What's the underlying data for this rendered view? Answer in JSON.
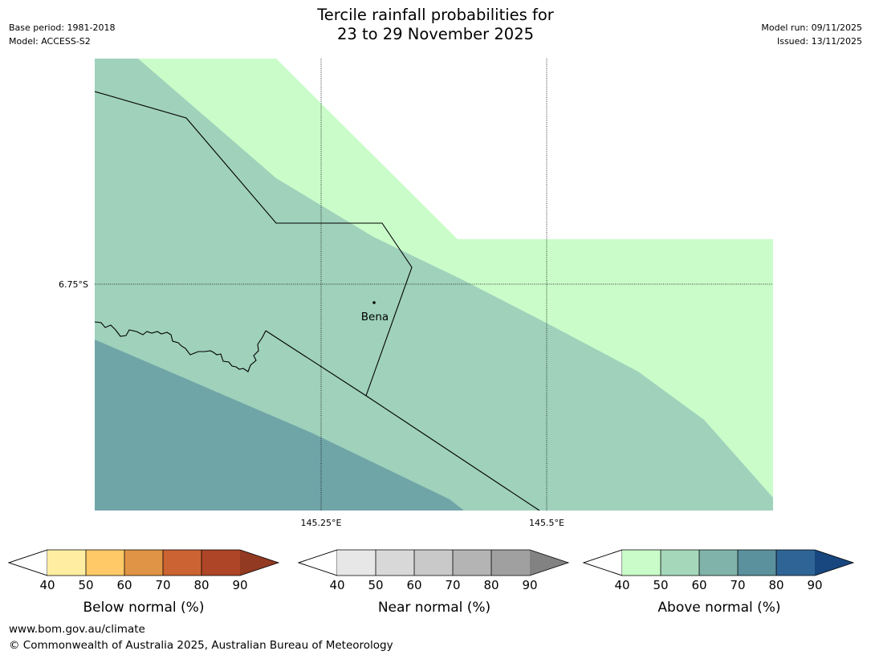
{
  "header": {
    "title_line1": "Tercile rainfall probabilities for",
    "title_line2": "23 to 29 November 2025",
    "base_period": "Base period: 1981-2018",
    "model": "Model: ACCESS-S2",
    "model_run": "Model run: 09/11/2025",
    "issued": "Issued: 13/11/2025"
  },
  "map": {
    "lat_labels": [
      "6.75°S"
    ],
    "lon_labels": [
      "145.25°E",
      "145.5°E"
    ],
    "place": {
      "name": "Bena"
    },
    "shading": {
      "above_40_50": "#c9fcc9",
      "above_50_60": "#9fd1bb",
      "above_60_70": "#70a5a8"
    }
  },
  "colorbars": {
    "tick_labels": [
      "40",
      "50",
      "60",
      "70",
      "80",
      "90"
    ],
    "below": {
      "label": "Below normal (%)",
      "colors": [
        "#ffeea1",
        "#fec966",
        "#e09445",
        "#cb6332",
        "#ad4526",
        "#923a22"
      ]
    },
    "near": {
      "label": "Near normal (%)",
      "colors": [
        "#e7e7e7",
        "#d8d8d8",
        "#c9c9c9",
        "#b4b4b4",
        "#a0a0a0",
        "#828282"
      ]
    },
    "above": {
      "label": "Above normal (%)",
      "colors": [
        "#c9fcc9",
        "#a5d7ba",
        "#80b4ab",
        "#5a919d",
        "#2f6596",
        "#18477f"
      ]
    }
  },
  "footer": {
    "url": "www.bom.gov.au/climate",
    "copyright": "© Commonwealth of Australia 2025, Australian Bureau of Meteorology"
  }
}
